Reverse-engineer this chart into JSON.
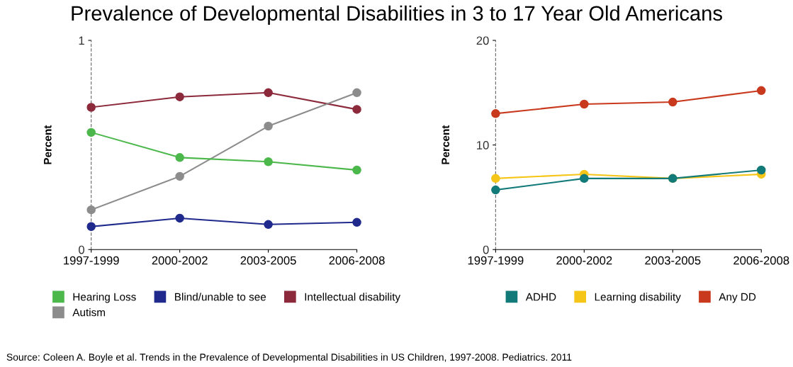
{
  "chart_data": [
    {
      "type": "line",
      "title": "Prevalence of Developmental Disabilities in 3 to 17 Year Old Americans",
      "ylabel": "Percent",
      "categories": [
        "1997-1999",
        "2000-2002",
        "2003-2005",
        "2006-2008"
      ],
      "series": [
        {
          "name": "Hearing Loss",
          "color": "#4cb84c",
          "values": [
            0.56,
            0.44,
            0.42,
            0.38
          ]
        },
        {
          "name": "Autism",
          "color": "#8c8c8c",
          "values": [
            0.19,
            0.35,
            0.59,
            0.75
          ]
        },
        {
          "name": "Blind/unable to see",
          "color": "#1f2a8c",
          "values": [
            0.11,
            0.15,
            0.12,
            0.13
          ]
        },
        {
          "name": "Intellectual disability",
          "color": "#8c2a3c",
          "values": [
            0.68,
            0.73,
            0.75,
            0.67
          ]
        }
      ],
      "ylim": [
        0,
        1
      ],
      "yticks": [
        0,
        1
      ],
      "grid": false,
      "legend": "bottom",
      "marker": "circle",
      "line_style": "solid",
      "annotations": [
        "Source: Coleen A. Boyle et al. Trends in the Prevalence of Developmental Disabilities in US Children, 1997-2008. Pediatrics. 2011"
      ]
    },
    {
      "type": "line",
      "ylabel": "Percent",
      "categories": [
        "1997-1999",
        "2000-2002",
        "2003-2005",
        "2006-2008"
      ],
      "series": [
        {
          "name": "ADHD",
          "color": "#127a78",
          "values": [
            5.7,
            6.8,
            6.8,
            7.6
          ]
        },
        {
          "name": "Learning disability",
          "color": "#f5c518",
          "values": [
            6.8,
            7.2,
            6.8,
            7.2
          ]
        },
        {
          "name": "Any DD",
          "color": "#c8391e",
          "values": [
            13.0,
            13.9,
            14.1,
            15.2
          ]
        }
      ],
      "ylim": [
        0,
        20
      ],
      "yticks": [
        0,
        10,
        20
      ],
      "grid": false,
      "legend": "bottom",
      "marker": "circle",
      "line_style": "solid"
    }
  ]
}
